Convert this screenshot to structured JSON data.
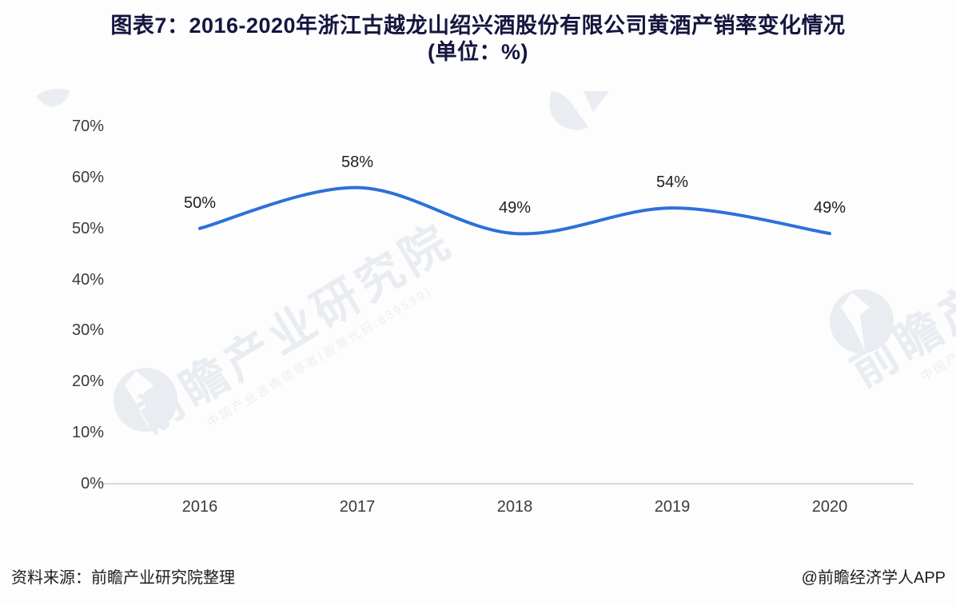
{
  "title": {
    "line1": "图表7：2016-2020年浙江古越龙山绍兴酒股份有限公司黄酒产销率变化情况",
    "line2": "(单位：%)"
  },
  "chart_data": {
    "type": "line",
    "title": "图表7：2016-2020年浙江古越龙山绍兴酒股份有限公司黄酒产销率变化情况(单位：%)",
    "categories": [
      "2016",
      "2017",
      "2018",
      "2019",
      "2020"
    ],
    "values": [
      50,
      58,
      49,
      54,
      49
    ],
    "point_labels": [
      "50%",
      "58%",
      "49%",
      "54%",
      "49%"
    ],
    "y_ticks": [
      0,
      10,
      20,
      30,
      40,
      50,
      60,
      70
    ],
    "y_tick_labels": [
      "0%",
      "10%",
      "20%",
      "30%",
      "40%",
      "50%",
      "60%",
      "70%"
    ],
    "ylim": [
      0,
      70
    ],
    "xlabel": "",
    "ylabel": "",
    "grid": "off",
    "legend": "none",
    "line_color": "#2e70d8",
    "axis_line_color": "#d9d9d9",
    "smooth": true
  },
  "footer": {
    "source": "资料来源：前瞻产业研究院整理",
    "credit": "@前瞻经济学人APP"
  },
  "watermark": {
    "brand_large": "前瞻产业研究院",
    "brand_small": "中国产业咨询领导者(股票代码:839599)",
    "color": "#e9ecf0"
  }
}
